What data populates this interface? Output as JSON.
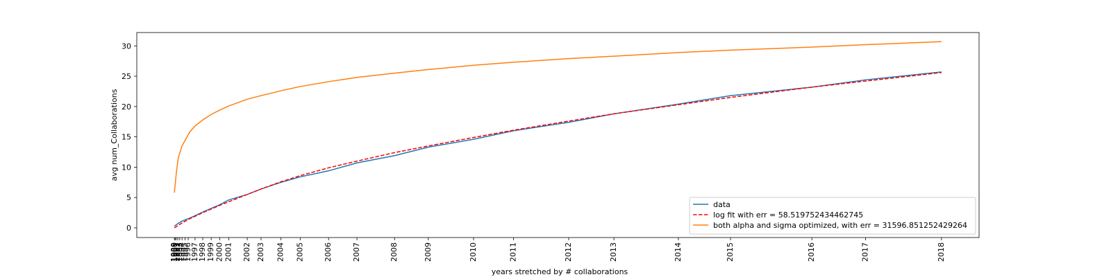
{
  "chart_data": {
    "type": "line",
    "xlabel": "years stretched by # collaborations",
    "ylabel": "avg num_Collaborations",
    "x": [
      0,
      0.25,
      0.5,
      1,
      2,
      2.7,
      3.7,
      4.8,
      5.9,
      7.1,
      9.5,
      11.3,
      13.9,
      16.4,
      20.1,
      23.8,
      28.7,
      33.1,
      39,
      44.2,
      51.4,
      57.3,
      65.7,
      72.5,
      83.1,
      90.1,
      100
    ],
    "series": [
      {
        "name": "data",
        "color": "#1f77b4",
        "linestyle": "solid",
        "values": [
          0.3,
          0.5,
          0.75,
          1.1,
          1.6,
          2.0,
          2.6,
          3.2,
          3.8,
          4.6,
          5.5,
          6.4,
          7.5,
          8.4,
          9.4,
          10.7,
          11.9,
          13.3,
          14.6,
          16.0,
          17.4,
          18.8,
          20.4,
          21.8,
          23.2,
          24.4,
          25.7
        ]
      },
      {
        "name": "log fit with err = 58.519752434462745",
        "color": "#ff0000",
        "linestyle": "dashed",
        "values": [
          0.0,
          0.2,
          0.4,
          0.8,
          1.5,
          1.9,
          2.5,
          3.1,
          3.7,
          4.3,
          5.5,
          6.4,
          7.6,
          8.6,
          9.9,
          11.0,
          12.4,
          13.5,
          14.9,
          16.1,
          17.6,
          18.8,
          20.3,
          21.5,
          23.2,
          24.2,
          25.6
        ]
      },
      {
        "name": "both alpha and sigma optimized, with err = 31596.851252429264",
        "color": "#ff7f0e",
        "linestyle": "solid",
        "values": [
          5.8,
          9.0,
          11.5,
          13.5,
          15.8,
          16.8,
          17.8,
          18.7,
          19.4,
          20.1,
          21.2,
          21.8,
          22.6,
          23.3,
          24.1,
          24.8,
          25.5,
          26.1,
          26.8,
          27.3,
          27.9,
          28.3,
          28.9,
          29.3,
          29.8,
          30.2,
          30.7
        ]
      }
    ],
    "xlim": [
      -4.9,
      104.9
    ],
    "ylim": [
      -1.6,
      32.2
    ],
    "yticks": [
      0,
      5,
      10,
      15,
      20,
      25,
      30
    ],
    "xticks": [
      {
        "value": 0,
        "label": "1989"
      },
      {
        "value": 0.1,
        "label": "1990"
      },
      {
        "value": 0.25,
        "label": "1991"
      },
      {
        "value": 0.45,
        "label": "1992"
      },
      {
        "value": 0.7,
        "label": "1993"
      },
      {
        "value": 1.0,
        "label": "1994"
      },
      {
        "value": 1.4,
        "label": "1995"
      },
      {
        "value": 1.8,
        "label": "1996"
      },
      {
        "value": 2.7,
        "label": "1997"
      },
      {
        "value": 3.7,
        "label": "1998"
      },
      {
        "value": 4.8,
        "label": "1999"
      },
      {
        "value": 5.9,
        "label": "2000"
      },
      {
        "value": 7.1,
        "label": "2001"
      },
      {
        "value": 9.5,
        "label": "2002"
      },
      {
        "value": 11.3,
        "label": "2003"
      },
      {
        "value": 13.9,
        "label": "2004"
      },
      {
        "value": 16.4,
        "label": "2005"
      },
      {
        "value": 20.1,
        "label": "2006"
      },
      {
        "value": 23.8,
        "label": "2007"
      },
      {
        "value": 28.7,
        "label": "2008"
      },
      {
        "value": 33.1,
        "label": "2009"
      },
      {
        "value": 39.0,
        "label": "2010"
      },
      {
        "value": 44.2,
        "label": "2011"
      },
      {
        "value": 51.4,
        "label": "2012"
      },
      {
        "value": 57.3,
        "label": "2013"
      },
      {
        "value": 65.7,
        "label": "2014"
      },
      {
        "value": 72.5,
        "label": "2015"
      },
      {
        "value": 83.1,
        "label": "2016"
      },
      {
        "value": 90.1,
        "label": "2017"
      },
      {
        "value": 100,
        "label": "2018"
      }
    ],
    "grid": false,
    "legend": "lower right"
  }
}
